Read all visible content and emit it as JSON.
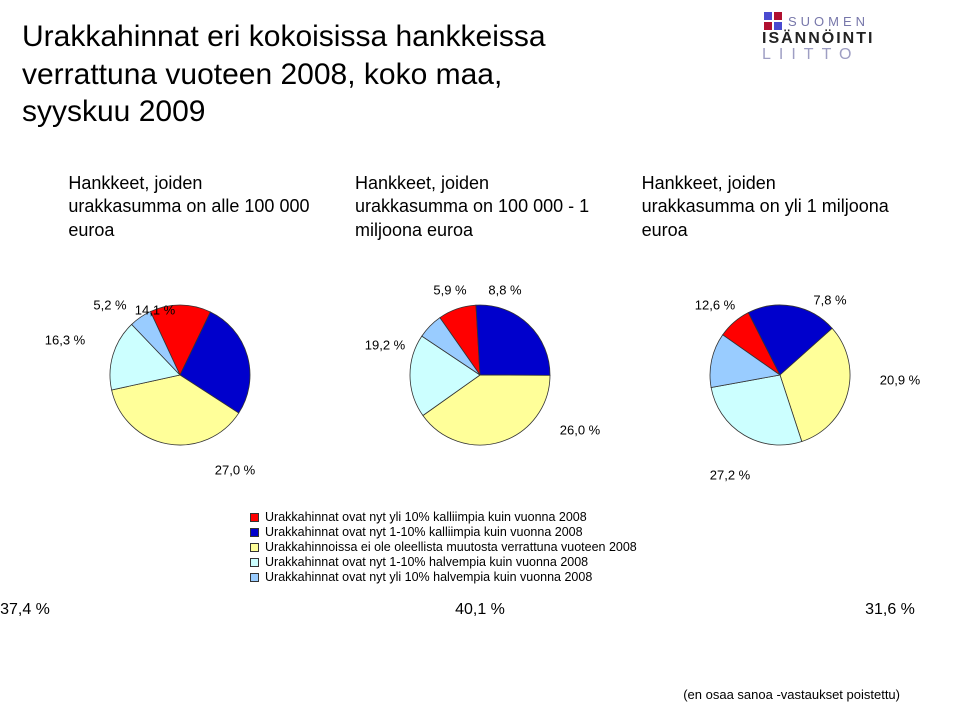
{
  "title_line1": "Urakkahinnat eri kokoisissa hankkeissa",
  "title_line2": "verrattuna vuoteen 2008, koko maa,",
  "title_line3": "syyskuu 2009",
  "logo": {
    "word1": "SUOMEN",
    "word2": "ISÄNNÖINTI",
    "word3": "LIITTO"
  },
  "subtitles": [
    "Hankkeet, joiden urakkasumma on alle 100 000 euroa",
    "Hankkeet, joiden urakkasumma on 100 000 - 1 miljoona euroa",
    "Hankkeet, joiden urakkasumma on yli 1 miljoona euroa"
  ],
  "palette": {
    "seg1": "#ff0000",
    "seg2": "#0000cc",
    "seg3": "#ffff99",
    "seg4": "#ccffff",
    "seg5": "#99ccff",
    "seg_border": "#333333",
    "bg": "#ffffff"
  },
  "charts": [
    {
      "segments": [
        {
          "value": 14.1,
          "color": "#ff0000",
          "label": "14,1 %",
          "label_pos": "out",
          "label_dx": -25,
          "label_dy": -65
        },
        {
          "value": 27.0,
          "color": "#0000cc",
          "label": "27,0 %",
          "label_pos": "out",
          "label_dx": 55,
          "label_dy": 95
        },
        {
          "value": 37.4,
          "color": "#ffff99",
          "label": "37,4 %",
          "label_pos": "far",
          "label_dx": -155,
          "label_dy": 235
        },
        {
          "value": 16.3,
          "color": "#ccffff",
          "label": "16,3 %",
          "label_pos": "out",
          "label_dx": -115,
          "label_dy": -35
        },
        {
          "value": 5.2,
          "color": "#99ccff",
          "label": "5,2 %",
          "label_pos": "out",
          "label_dx": -70,
          "label_dy": -70
        }
      ],
      "radius": 70,
      "start_angle": -25
    },
    {
      "segments": [
        {
          "value": 8.8,
          "color": "#ff0000",
          "label": "8,8 %",
          "label_pos": "out",
          "label_dx": 25,
          "label_dy": -85
        },
        {
          "value": 26.0,
          "color": "#0000cc",
          "label": "26,0 %",
          "label_pos": "out",
          "label_dx": 100,
          "label_dy": 55
        },
        {
          "value": 40.1,
          "color": "#ffff99",
          "label": "40,1 %",
          "label_pos": "far",
          "label_dx": 0,
          "label_dy": 235
        },
        {
          "value": 19.2,
          "color": "#ccffff",
          "label": "19,2 %",
          "label_pos": "out",
          "label_dx": -95,
          "label_dy": -30
        },
        {
          "value": 5.9,
          "color": "#99ccff",
          "label": "5,9 %",
          "label_pos": "out",
          "label_dx": -30,
          "label_dy": -85
        }
      ],
      "radius": 70,
      "start_angle": -35
    },
    {
      "segments": [
        {
          "value": 7.8,
          "color": "#ff0000",
          "label": "7,8 %",
          "label_pos": "out",
          "label_dx": 50,
          "label_dy": -75
        },
        {
          "value": 20.9,
          "color": "#0000cc",
          "label": "20,9 %",
          "label_pos": "out",
          "label_dx": 120,
          "label_dy": 5
        },
        {
          "value": 31.6,
          "color": "#ffff99",
          "label": "31,6 %",
          "label_pos": "far",
          "label_dx": 110,
          "label_dy": 235
        },
        {
          "value": 27.2,
          "color": "#ccffff",
          "label": "27,2 %",
          "label_pos": "out",
          "label_dx": -50,
          "label_dy": 100
        },
        {
          "value": 12.6,
          "color": "#99ccff",
          "label": "12,6 %",
          "label_pos": "out",
          "label_dx": -65,
          "label_dy": -70
        }
      ],
      "radius": 70,
      "start_angle": -55
    }
  ],
  "legend": [
    {
      "color": "#ff0000",
      "text": "Urakkahinnat ovat nyt yli 10% kalliimpia kuin vuonna 2008"
    },
    {
      "color": "#0000cc",
      "text": "Urakkahinnat ovat nyt 1-10% kalliimpia kuin vuonna 2008"
    },
    {
      "color": "#ffff99",
      "text": "Urakkahinnoissa ei ole oleellista muutosta verrattuna vuoteen 2008"
    },
    {
      "color": "#ccffff",
      "text": "Urakkahinnat ovat nyt 1-10% halvempia kuin vuonna 2008"
    },
    {
      "color": "#99ccff",
      "text": "Urakkahinnat ovat nyt yli 10% halvempia kuin vuonna 2008"
    }
  ],
  "footnote": "(en osaa sanoa -vastaukset poistettu)"
}
